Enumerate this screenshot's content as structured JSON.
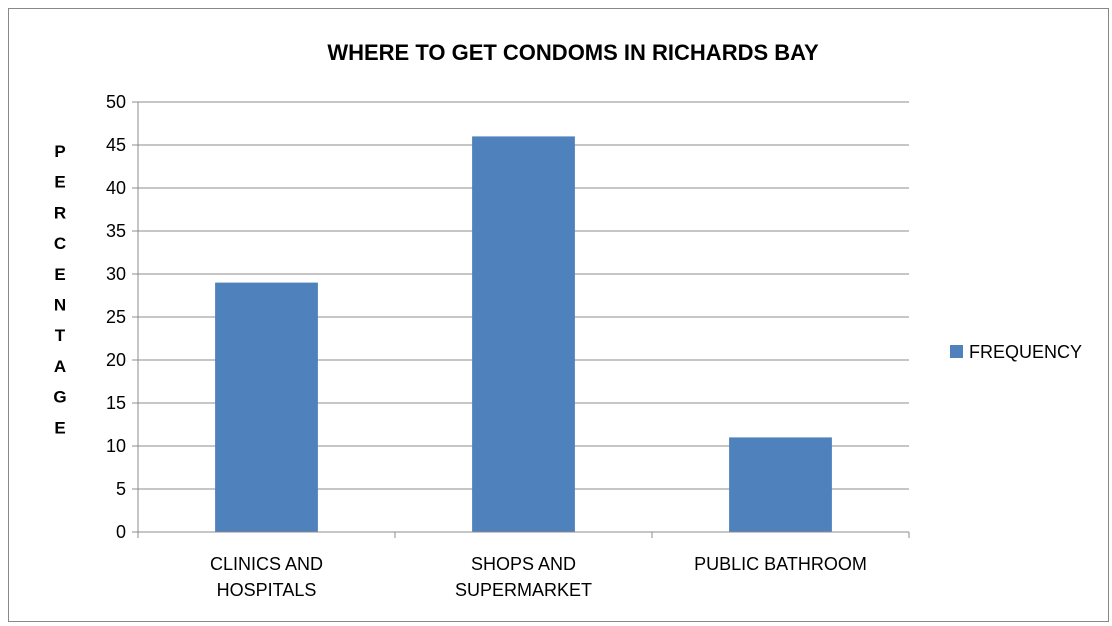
{
  "chart_data": {
    "type": "bar",
    "title": "WHERE TO GET CONDOMS IN RICHARDS BAY",
    "xlabel": "",
    "ylabel": "PERCENTAGE",
    "categories": [
      "CLINICS AND HOSPITALS",
      "SHOPS AND SUPERMARKET",
      "PUBLIC BATHROOM"
    ],
    "series": [
      {
        "name": "FREQUENCY",
        "values": [
          29,
          46,
          11
        ],
        "color": "#4f81bd"
      }
    ],
    "ylim": [
      0,
      50
    ],
    "yticks": [
      0,
      5,
      10,
      15,
      20,
      25,
      30,
      35,
      40,
      45,
      50
    ],
    "grid": true,
    "legend_position": "right"
  }
}
